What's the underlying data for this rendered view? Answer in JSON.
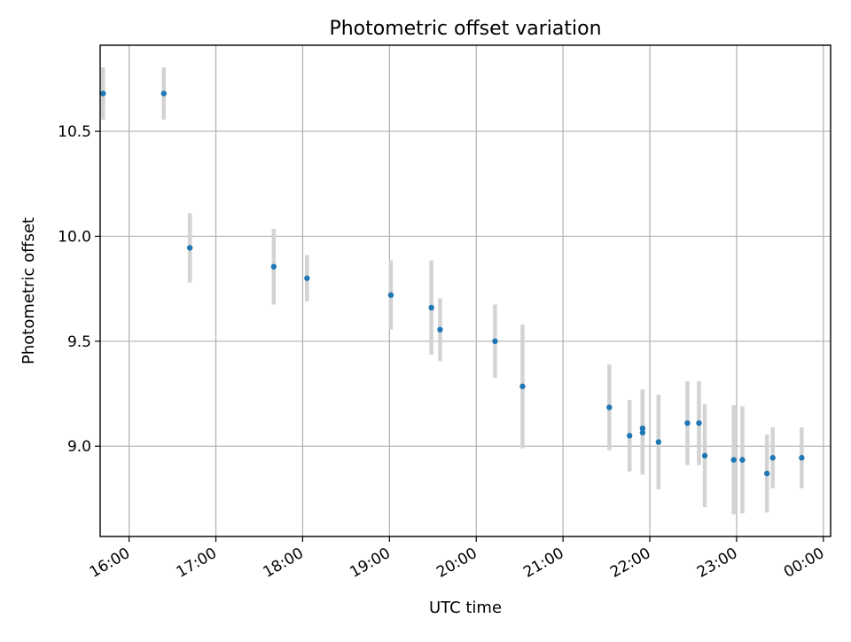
{
  "chart_data": {
    "type": "scatter",
    "title": "Photometric offset variation",
    "xlabel": "UTC time",
    "ylabel": "Photometric offset",
    "x_axis_type": "time",
    "xlim": [
      "15:40",
      "00:05"
    ],
    "ylim": [
      8.57,
      10.91
    ],
    "x_ticks": [
      "16:00",
      "17:00",
      "18:00",
      "19:00",
      "20:00",
      "21:00",
      "22:00",
      "23:00",
      "00:00"
    ],
    "y_ticks": [
      "9.0",
      "9.5",
      "10.0",
      "10.5"
    ],
    "grid": true,
    "legend": "none",
    "colors": {
      "point": "#1f77b4",
      "error_bar": "#d3d3d3",
      "grid": "#b0b0b0"
    },
    "series": [
      {
        "points": [
          {
            "x": "15:42",
            "y": 10.68,
            "err": 0.125
          },
          {
            "x": "16:24",
            "y": 10.68,
            "err": 0.125
          },
          {
            "x": "16:42",
            "y": 9.945,
            "err": 0.165
          },
          {
            "x": "17:40",
            "y": 9.855,
            "err": 0.18
          },
          {
            "x": "18:03",
            "y": 9.8,
            "err": 0.11
          },
          {
            "x": "19:01",
            "y": 9.72,
            "err": 0.165
          },
          {
            "x": "19:29",
            "y": 9.66,
            "err": 0.225
          },
          {
            "x": "19:35",
            "y": 9.555,
            "err": 0.15
          },
          {
            "x": "20:13",
            "y": 9.5,
            "err": 0.175
          },
          {
            "x": "20:32",
            "y": 9.285,
            "err": 0.295
          },
          {
            "x": "21:32",
            "y": 9.185,
            "err": 0.205
          },
          {
            "x": "21:46",
            "y": 9.05,
            "err": 0.17
          },
          {
            "x": "21:55",
            "y": 9.085,
            "err": 0.185
          },
          {
            "x": "21:55",
            "y": 9.065,
            "err": 0.2
          },
          {
            "x": "22:06",
            "y": 9.02,
            "err": 0.225
          },
          {
            "x": "22:26",
            "y": 9.11,
            "err": 0.2
          },
          {
            "x": "22:34",
            "y": 9.11,
            "err": 0.2
          },
          {
            "x": "22:38",
            "y": 8.955,
            "err": 0.245
          },
          {
            "x": "22:58",
            "y": 8.935,
            "err": 0.26
          },
          {
            "x": "23:04",
            "y": 8.935,
            "err": 0.255
          },
          {
            "x": "23:21",
            "y": 8.87,
            "err": 0.185
          },
          {
            "x": "23:25",
            "y": 8.945,
            "err": 0.145
          },
          {
            "x": "23:45",
            "y": 8.945,
            "err": 0.145
          }
        ]
      }
    ]
  }
}
